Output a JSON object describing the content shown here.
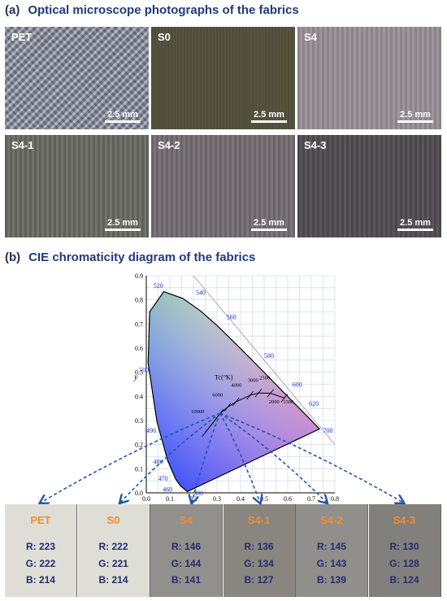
{
  "panel_a": {
    "letter": "(a)",
    "title": "Optical microscope photographs of the fabrics",
    "tiles": [
      {
        "name": "PET",
        "scale": "2.5 mm"
      },
      {
        "name": "S0",
        "scale": "2.5 mm"
      },
      {
        "name": "S4",
        "scale": "2.5 mm"
      },
      {
        "name": "S4-1",
        "scale": "2.5 mm"
      },
      {
        "name": "S4-2",
        "scale": "2.5 mm"
      },
      {
        "name": "S4-3",
        "scale": "2.5 mm"
      }
    ]
  },
  "panel_b": {
    "letter": "(b)",
    "title": "CIE chromaticity diagram of the fabrics",
    "diagram": {
      "y_axis_label": "y",
      "x_ticks": [
        "0.0",
        "0.1",
        "0.2",
        "0.3",
        "0.4",
        "0.5",
        "0.6",
        "0.7",
        "0.8"
      ],
      "y_ticks": [
        "0.0",
        "0.1",
        "0.2",
        "0.3",
        "0.4",
        "0.5",
        "0.6",
        "0.7",
        "0.8",
        "0.9"
      ],
      "wavelength_labels": [
        "380",
        "460",
        "470",
        "480",
        "490",
        "500",
        "520",
        "540",
        "560",
        "580",
        "600",
        "620",
        "700"
      ],
      "tc_label": "Tc(°K)",
      "tc_ticks": [
        "10000",
        "6000",
        "4000",
        "3000",
        "2500",
        "2000",
        "1500"
      ]
    },
    "swatches": [
      {
        "name": "PET",
        "r": "R: 223",
        "g": "G: 222",
        "b": "B: 214",
        "color": "#dfded6"
      },
      {
        "name": "S0",
        "r": "R: 222",
        "g": "G: 221",
        "b": "B: 214",
        "color": "#dedDd6"
      },
      {
        "name": "S4",
        "r": "R: 146",
        "g": "G: 144",
        "b": "B: 141",
        "color": "#92908d"
      },
      {
        "name": "S4-1",
        "r": "R: 136",
        "g": "G: 134",
        "b": "B: 127",
        "color": "#88867f"
      },
      {
        "name": "S4-2",
        "r": "R: 145",
        "g": "G: 143",
        "b": "B: 139",
        "color": "#918f8b"
      },
      {
        "name": "S4-3",
        "r": "R: 130",
        "g": "G: 128",
        "b": "B: 124",
        "color": "#82807c"
      }
    ]
  }
}
